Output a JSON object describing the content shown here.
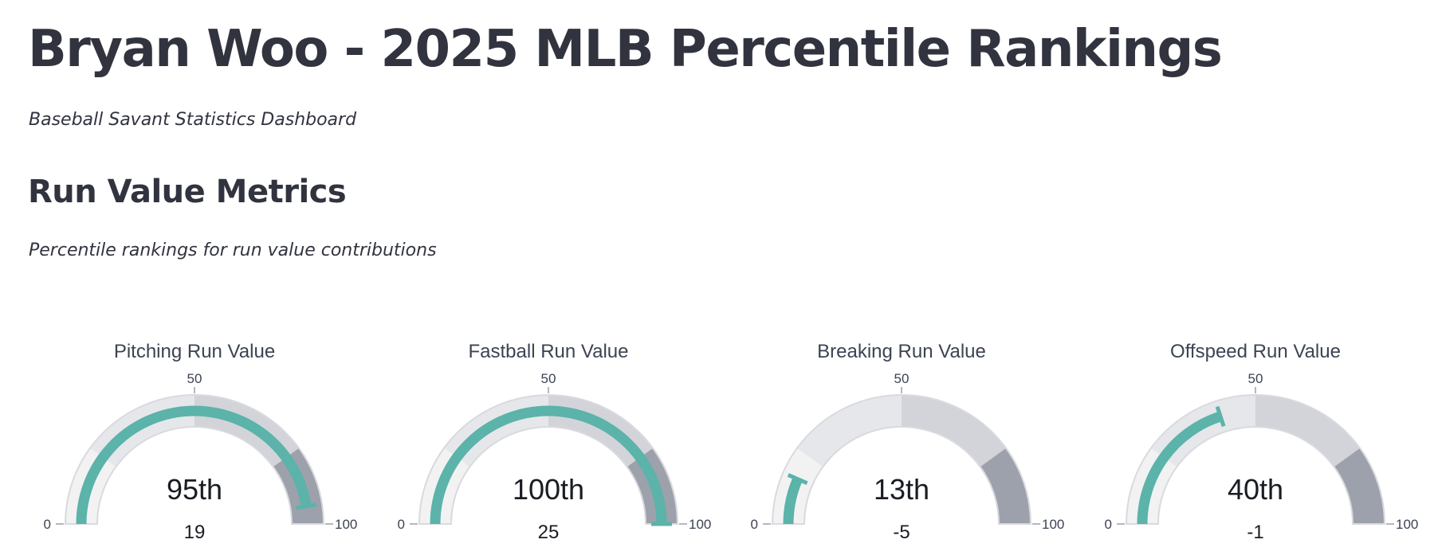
{
  "header": {
    "title": "Bryan Woo - 2025 MLB Percentile Rankings",
    "subtitle": "Baseball Savant Statistics Dashboard"
  },
  "section": {
    "heading": "Run Value Metrics",
    "caption": "Percentile rankings for run value contributions"
  },
  "colors": {
    "bar": "#5bb3aa",
    "band_low": "#f2f2f3",
    "band_mid_low": "#e6e7ea",
    "band_mid_high": "#d2d4d9",
    "band_high": "#9da1ab",
    "outline": "#d9dadf",
    "text": "#31333f"
  },
  "chart_data": [
    {
      "type": "gauge",
      "title": "Pitching Run Value",
      "value": 95,
      "value_label": "95th",
      "raw_value": "19",
      "range": [
        0,
        100
      ],
      "ticks": [
        "0",
        "50",
        "100"
      ],
      "bands": [
        [
          0,
          20
        ],
        [
          20,
          50
        ],
        [
          50,
          80
        ],
        [
          80,
          100
        ]
      ]
    },
    {
      "type": "gauge",
      "title": "Fastball Run Value",
      "value": 100,
      "value_label": "100th",
      "raw_value": "25",
      "range": [
        0,
        100
      ],
      "ticks": [
        "0",
        "50",
        "100"
      ],
      "bands": [
        [
          0,
          20
        ],
        [
          20,
          50
        ],
        [
          50,
          80
        ],
        [
          80,
          100
        ]
      ]
    },
    {
      "type": "gauge",
      "title": "Breaking Run Value",
      "value": 13,
      "value_label": "13th",
      "raw_value": "-5",
      "range": [
        0,
        100
      ],
      "ticks": [
        "0",
        "50",
        "100"
      ],
      "bands": [
        [
          0,
          20
        ],
        [
          20,
          50
        ],
        [
          50,
          80
        ],
        [
          80,
          100
        ]
      ]
    },
    {
      "type": "gauge",
      "title": "Offspeed Run Value",
      "value": 40,
      "value_label": "40th",
      "raw_value": "-1",
      "range": [
        0,
        100
      ],
      "ticks": [
        "0",
        "50",
        "100"
      ],
      "bands": [
        [
          0,
          20
        ],
        [
          20,
          50
        ],
        [
          50,
          80
        ],
        [
          80,
          100
        ]
      ]
    }
  ]
}
